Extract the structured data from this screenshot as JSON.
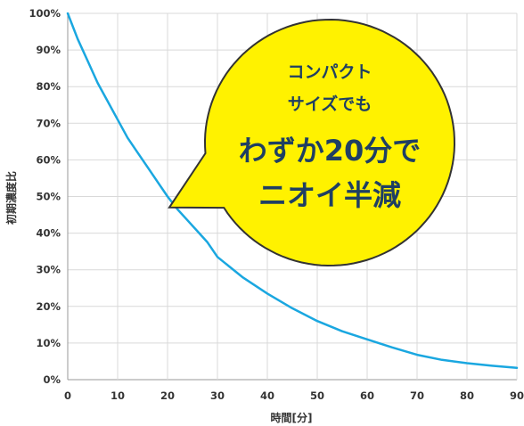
{
  "chart_data": {
    "type": "line",
    "xlabel": "時間[分]",
    "ylabel": "初期濃度比",
    "xlim": [
      0,
      90
    ],
    "ylim": [
      0,
      100
    ],
    "x_ticks": [
      0,
      10,
      20,
      30,
      40,
      50,
      60,
      70,
      80,
      90
    ],
    "y_ticks": [
      "0%",
      "10%",
      "20%",
      "30%",
      "40%",
      "50%",
      "60%",
      "70%",
      "80%",
      "90%",
      "100%"
    ],
    "grid": true,
    "series": [
      {
        "color": "#1aa7e0",
        "x": [
          0,
          2,
          4,
          6,
          8,
          10,
          12,
          14,
          16,
          18,
          20,
          22,
          24,
          26,
          28,
          30,
          35,
          40,
          45,
          50,
          55,
          60,
          65,
          70,
          75,
          80,
          85,
          90
        ],
        "values": [
          100,
          93,
          87,
          81,
          76,
          71,
          66,
          62,
          58,
          54,
          50,
          46.5,
          43.5,
          40.5,
          37.5,
          33.5,
          28,
          23.5,
          19.5,
          16,
          13.2,
          11,
          8.8,
          6.8,
          5.4,
          4.5,
          3.8,
          3.2
        ]
      }
    ],
    "annotation": {
      "line1": "コンパクト",
      "line2": "サイズでも",
      "line3": "わずか20分で",
      "line4": "ニオイ半減",
      "fill": "#fff200",
      "text_color": "#1f3f63"
    }
  }
}
